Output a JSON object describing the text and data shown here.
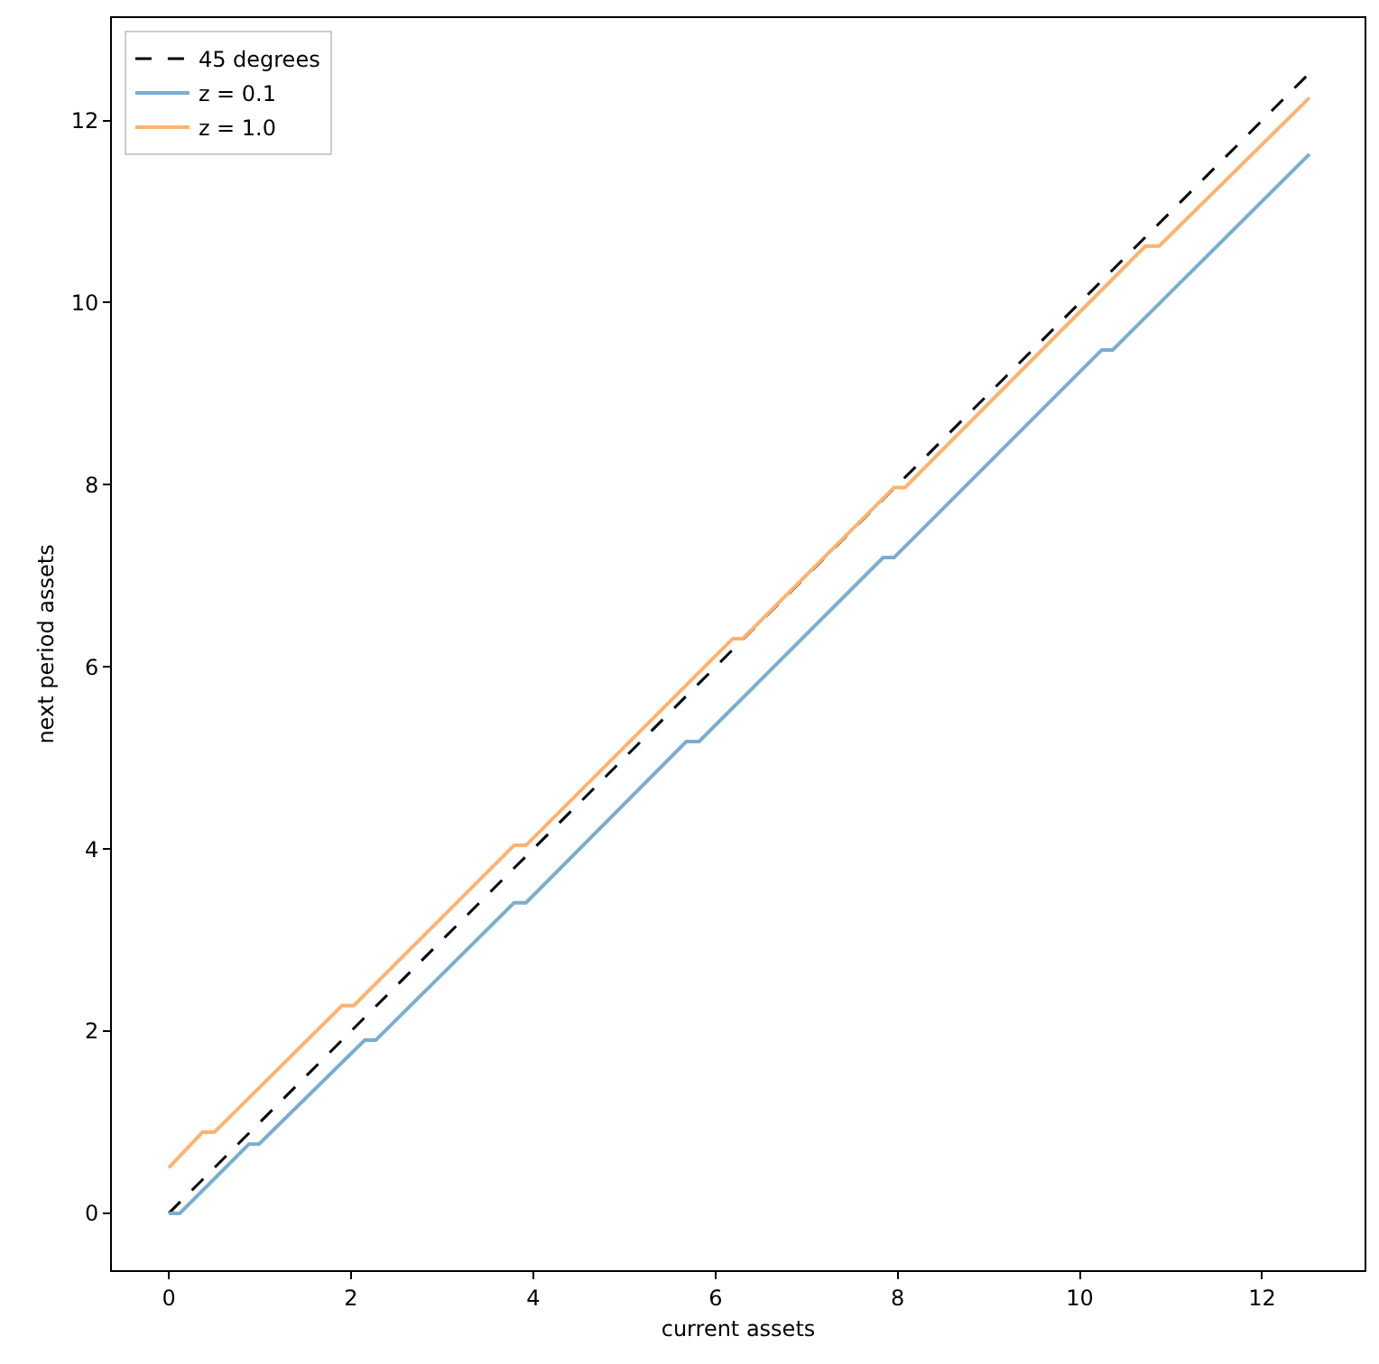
{
  "chart_data": {
    "type": "line",
    "xlabel": "current assets",
    "ylabel": "next period assets",
    "xlim": [
      -0.625,
      13.125
    ],
    "ylim": [
      -0.625,
      13.125
    ],
    "xticks": [
      0,
      2,
      4,
      6,
      8,
      10,
      12
    ],
    "yticks": [
      0,
      2,
      4,
      6,
      8,
      10,
      12
    ],
    "grid": false,
    "legend": "top left",
    "marker": "none",
    "series": [
      {
        "name": "45 degrees",
        "color": "#000000",
        "line_style": "dashed",
        "x": [
          0,
          12.5
        ],
        "values": [
          0,
          12.5
        ]
      },
      {
        "name": "z = 0.1",
        "color": "#79add2",
        "line_style": "solid",
        "x": [
          0,
          0.12,
          0.88,
          0.99,
          2.15,
          2.27,
          3.79,
          3.92,
          5.68,
          5.82,
          7.84,
          7.96,
          10.24,
          10.36,
          12.52
        ],
        "values": [
          0,
          0,
          0.76,
          0.76,
          1.9,
          1.9,
          3.41,
          3.41,
          5.18,
          5.18,
          7.2,
          7.2,
          9.48,
          9.48,
          11.63
        ]
      },
      {
        "name": "z = 1.0",
        "color": "#ffb26e",
        "line_style": "solid",
        "x": [
          0,
          0.37,
          0.5,
          1.9,
          2.03,
          3.79,
          3.92,
          6.19,
          6.3,
          7.96,
          8.08,
          10.72,
          10.87,
          12.52
        ],
        "values": [
          0.5,
          0.89,
          0.89,
          2.28,
          2.28,
          4.04,
          4.04,
          6.31,
          6.31,
          7.97,
          7.97,
          10.62,
          10.62,
          12.25
        ]
      }
    ]
  }
}
